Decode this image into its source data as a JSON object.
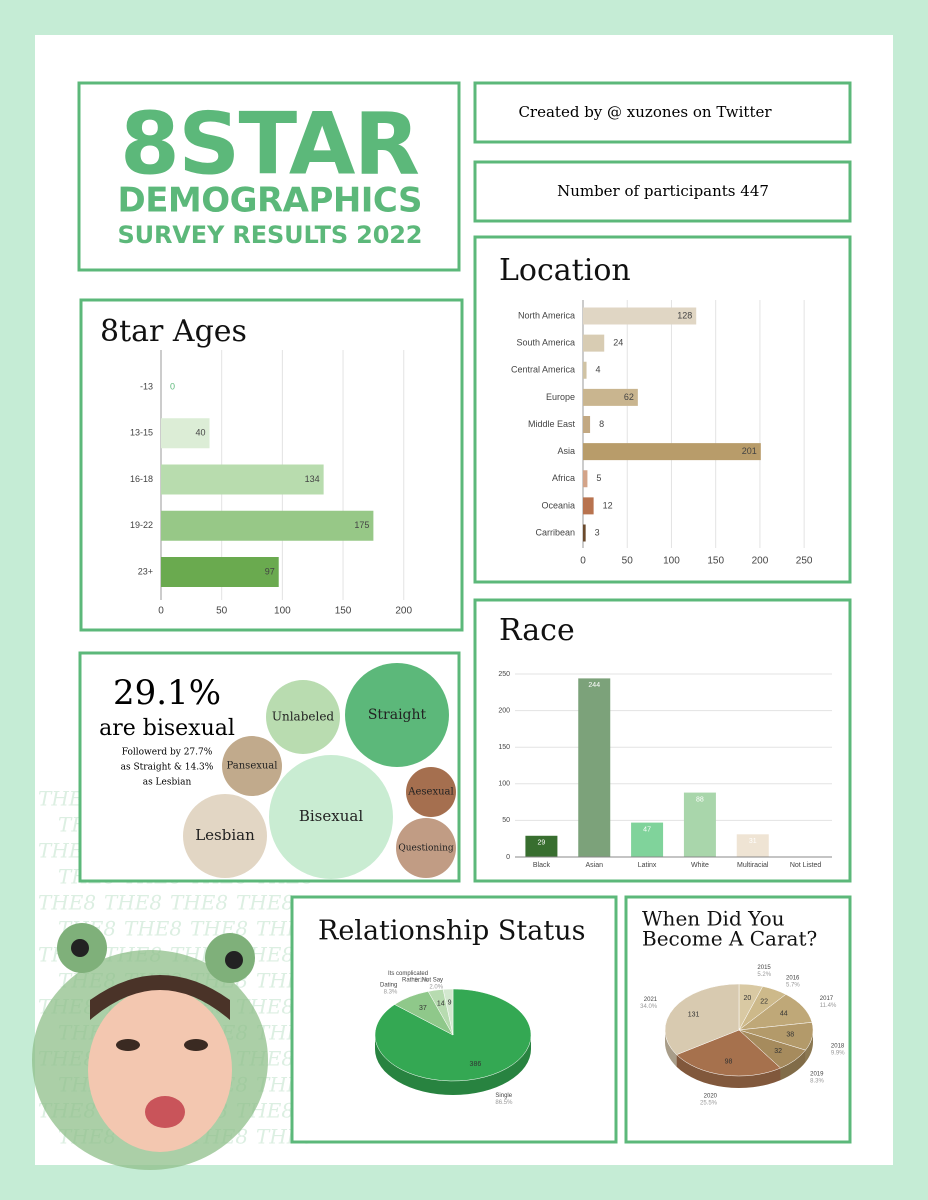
{
  "header": {
    "title": "8STAR",
    "subtitle": "DEMOGRAPHICS",
    "tagline": "SURVEY RESULTS 2022",
    "credit": "Created by @ xuzones on Twitter",
    "participants": "Number of participants 447"
  },
  "watermark": "THE8",
  "bisexual_panel": {
    "headline": "29.1%",
    "subhead": "are bisexual",
    "note": [
      "Followerd by 27.7%",
      "as Straight & 14.3%",
      "as Lesbian"
    ],
    "bubbles": [
      {
        "label": "Straight",
        "color": "#5cb87a"
      },
      {
        "label": "Unlabeled",
        "color": "#b9dcb0"
      },
      {
        "label": "Pansexual",
        "color": "#c1aa8c"
      },
      {
        "label": "Bisexual",
        "color": "#c9ecd2"
      },
      {
        "label": "Lesbian",
        "color": "#e2d6c4"
      },
      {
        "label": "Aesexual",
        "color": "#a56f4f"
      },
      {
        "label": "Questioning",
        "color": "#c19c84"
      }
    ]
  },
  "chart_data": [
    {
      "type": "hbar",
      "title": "8tar Ages",
      "categories": [
        "-13",
        "13-15",
        "16-18",
        "19-22",
        "23+"
      ],
      "values": [
        0,
        40,
        134,
        175,
        97
      ],
      "colors": [
        "#e8f3e4",
        "#dcedd6",
        "#b8dcae",
        "#97c887",
        "#6aaa4f"
      ],
      "xlim": [
        0,
        220
      ],
      "xticks": [
        0,
        50,
        100,
        150,
        200
      ],
      "grid": true
    },
    {
      "type": "hbar",
      "title": "Location",
      "categories": [
        "North America",
        "South America",
        "Central America",
        "Europe",
        "Middle East",
        "Asia",
        "Africa",
        "Oceania",
        "Carribean"
      ],
      "values": [
        128,
        24,
        4,
        62,
        8,
        201,
        5,
        12,
        3
      ],
      "colors": [
        "#e0d6c4",
        "#d8ccb3",
        "#d0c3a4",
        "#c9b58f",
        "#c2a882",
        "#b89c6a",
        "#d3a489",
        "#b8734f",
        "#6b4a2c"
      ],
      "xlim": [
        0,
        260
      ],
      "xticks": [
        0,
        50,
        100,
        150,
        200,
        250
      ],
      "grid": true
    },
    {
      "type": "vbar",
      "title": "Race",
      "categories": [
        "Black",
        "Asian",
        "Latinx",
        "White",
        "Multiracial",
        "Not Listed"
      ],
      "values": [
        29,
        244,
        47,
        88,
        31,
        0
      ],
      "colors": [
        "#386e2f",
        "#7ca27a",
        "#80d39b",
        "#a9d6ab",
        "#efe4d4",
        "#cccccc"
      ],
      "ylim": [
        0,
        250
      ],
      "yticks": [
        0,
        50,
        100,
        150,
        200,
        250
      ],
      "grid": true
    },
    {
      "type": "pie",
      "title": "Relationship Status",
      "categories": [
        "Single",
        "Dating",
        "Its complicated",
        "Rather Not Say"
      ],
      "values": [
        386,
        37,
        14,
        9
      ],
      "percent_labels": [
        "86.5%",
        "8.3%",
        "3.1%",
        "2.0%"
      ],
      "colors": [
        "#34a853",
        "#8fc88a",
        "#b7dbb0",
        "#d3e8cf"
      ]
    },
    {
      "type": "pie",
      "title": [
        "When Did You",
        "Become A Carat?"
      ],
      "categories": [
        "2015",
        "2016",
        "2017",
        "2018",
        "2019",
        "2020",
        "2021"
      ],
      "values": [
        20,
        22,
        44,
        38,
        32,
        98,
        131
      ],
      "percent_labels": [
        "5.2%",
        "5.7%",
        "11.4%",
        "9.9%",
        "8.3%",
        "25.5%",
        "34.0%"
      ],
      "colors": [
        "#d9c9a3",
        "#cdb98a",
        "#bfa878",
        "#b39a6a",
        "#a68b5d",
        "#a6714d",
        "#d8cab0"
      ]
    }
  ]
}
